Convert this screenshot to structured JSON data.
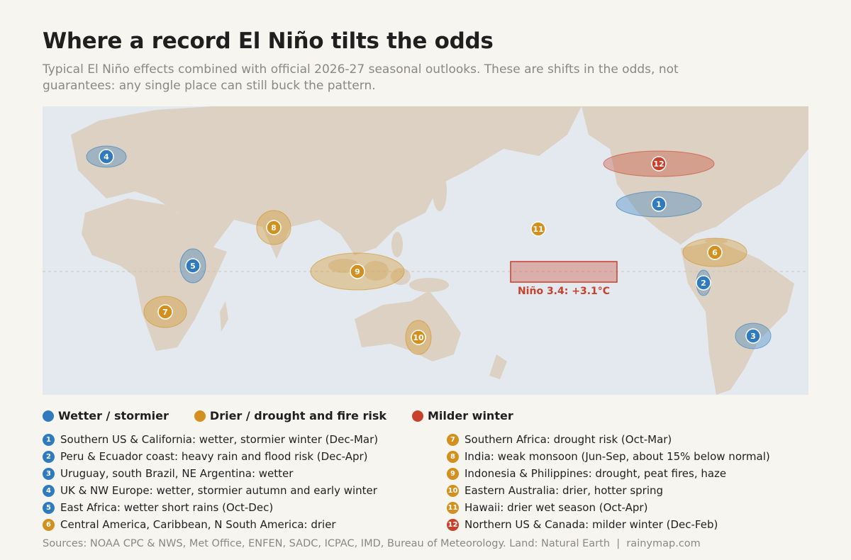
{
  "header": {
    "title": "Where a record El Niño tilts the odds",
    "subtitle": "Typical El Niño effects combined with official 2026-27 seasonal outlooks. These are shifts in the odds, not guarantees: any single place can still buck the pattern."
  },
  "map": {
    "nino_label": "Niño 3.4: +3.1°C"
  },
  "legend": [
    {
      "name": "Wetter / stormier",
      "color": "#2f7bbd"
    },
    {
      "name": "Drier / drought and fire risk",
      "color": "#d4901e"
    },
    {
      "name": "Milder winter",
      "color": "#c8412b"
    }
  ],
  "regions": [
    {
      "number": "1",
      "text": "Southern US & California: wetter, stormier winter (Dec-Mar)",
      "color": "#2f7bbd"
    },
    {
      "number": "2",
      "text": "Peru & Ecuador coast: heavy rain and flood risk (Dec-Apr)",
      "color": "#2f7bbd"
    },
    {
      "number": "3",
      "text": "Uruguay, south Brazil, NE Argentina: wetter",
      "color": "#2f7bbd"
    },
    {
      "number": "4",
      "text": "UK & NW Europe: wetter, stormier autumn and early winter",
      "color": "#2f7bbd"
    },
    {
      "number": "5",
      "text": "East Africa: wetter short rains (Oct-Dec)",
      "color": "#2f7bbd"
    },
    {
      "number": "6",
      "text": "Central America, Caribbean, N South America: drier",
      "color": "#d4901e"
    },
    {
      "number": "7",
      "text": "Southern Africa: drought risk (Oct-Mar)",
      "color": "#d4901e"
    },
    {
      "number": "8",
      "text": "India: weak monsoon (Jun-Sep, about 15% below normal)",
      "color": "#d4901e"
    },
    {
      "number": "9",
      "text": "Indonesia & Philippines: drought, peat fires, haze",
      "color": "#d4901e"
    },
    {
      "number": "10",
      "text": "Eastern Australia: drier, hotter spring",
      "color": "#d4901e"
    },
    {
      "number": "11",
      "text": "Hawaii: drier wet season (Oct-Apr)",
      "color": "#d4901e"
    },
    {
      "number": "12",
      "text": "Northern US & Canada: milder winter (Dec-Feb)",
      "color": "#c8412b"
    }
  ],
  "footer": {
    "sources": "Sources: NOAA CPC & NWS, Met Office, ENFEN, SADC, ICPAC, IMD, Bureau of Meteorology. Land: Natural Earth  |  rainymap.com"
  }
}
